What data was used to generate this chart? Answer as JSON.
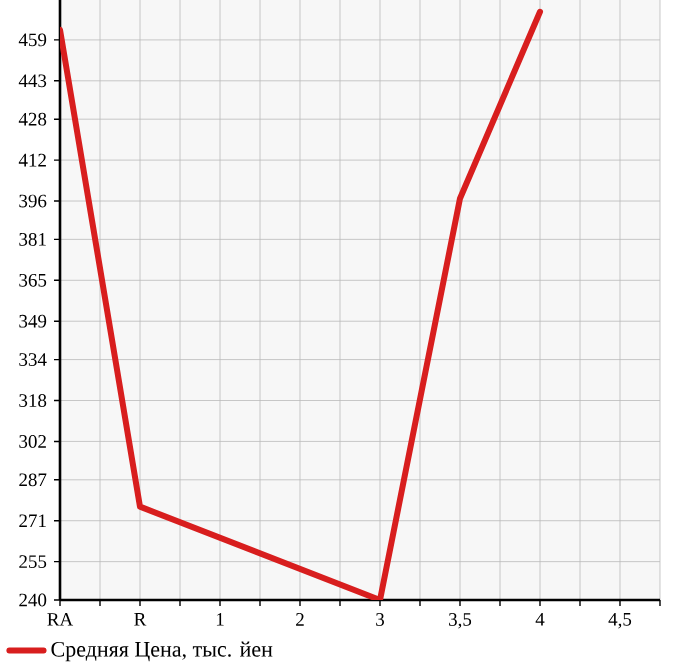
{
  "chart_data": {
    "type": "line",
    "categories": [
      "RA",
      "R",
      "1",
      "2",
      "3",
      "3,5",
      "4",
      "4,5"
    ],
    "series": [
      {
        "name": "Средняя Цена, тыс. йен",
        "color": "#d81e1e",
        "values": [
          463,
          276.5,
          null,
          null,
          240,
          397,
          470,
          null
        ]
      }
    ],
    "ylim": [
      240,
      474.6
    ],
    "yticks": [
      240,
      255,
      271,
      287,
      302,
      318,
      334,
      349,
      365,
      381,
      396,
      412,
      428,
      443,
      459
    ],
    "grid": true,
    "legend": "bottom",
    "line_style": "solid"
  }
}
